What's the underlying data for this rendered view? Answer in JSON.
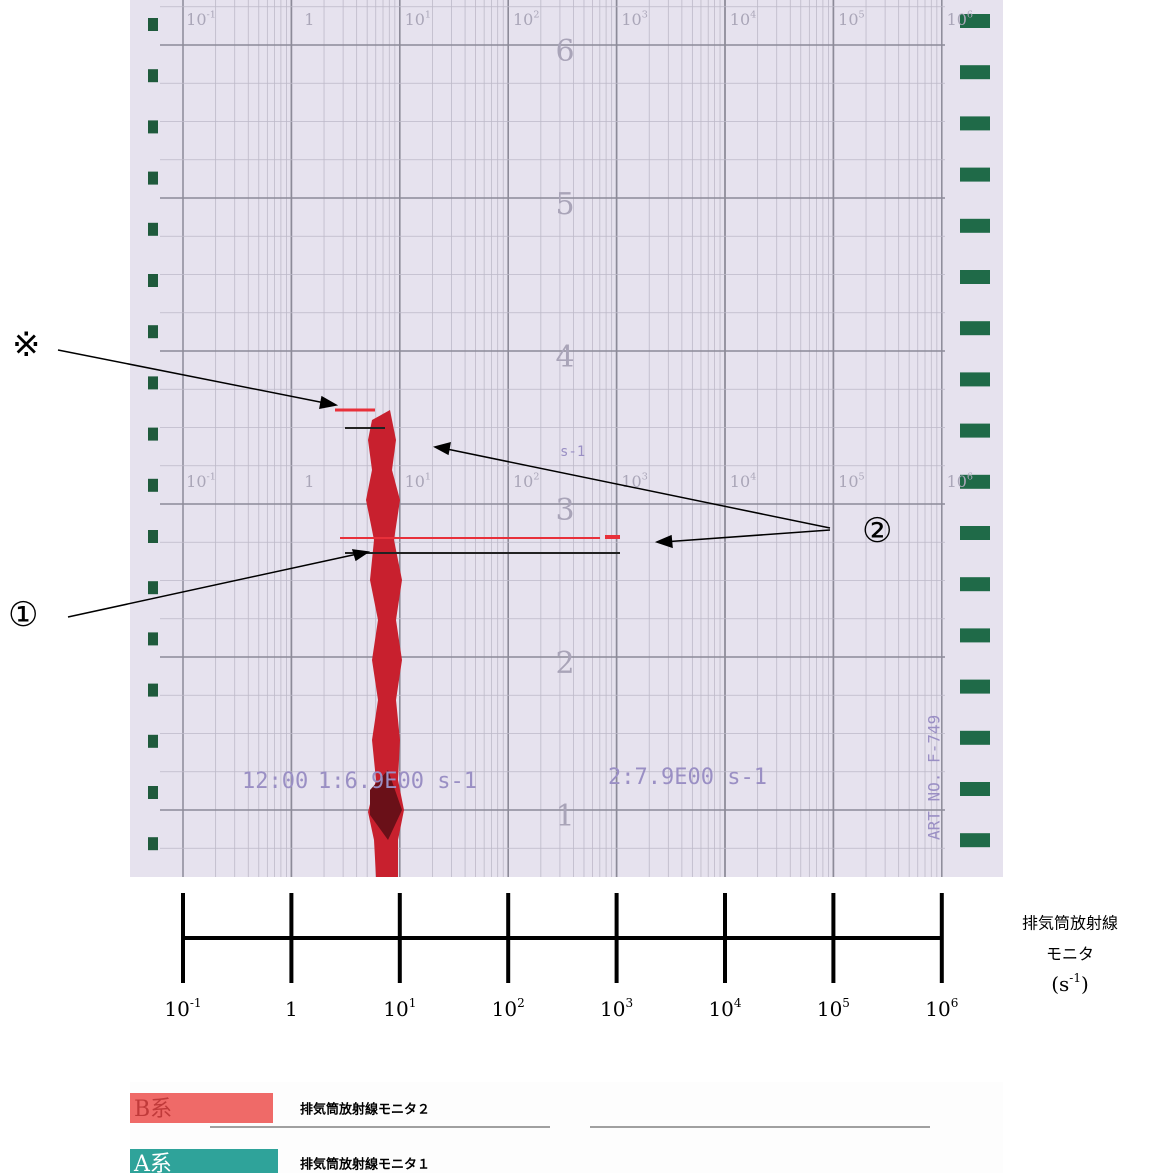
{
  "recorder": {
    "hour_marks": [
      "6",
      "5",
      "4",
      "3",
      "2",
      "1"
    ],
    "print_time": "12:00",
    "print_1": "1:6.9E00 s-1",
    "print_2": "2:7.9E00 s-1",
    "chart_no": "ART NO. F-749",
    "mid_unit": "s-1"
  },
  "annotations": {
    "note": "※",
    "marker_1": "①",
    "marker_2": "②"
  },
  "axis": {
    "ticks": [
      {
        "base": "10",
        "exp": "-1"
      },
      {
        "base": "1"
      },
      {
        "base": "10",
        "exp": "1"
      },
      {
        "base": "10",
        "exp": "2"
      },
      {
        "base": "10",
        "exp": "3"
      },
      {
        "base": "10",
        "exp": "4"
      },
      {
        "base": "10",
        "exp": "5"
      },
      {
        "base": "10",
        "exp": "6"
      }
    ],
    "label_line1": "排気筒放射線",
    "label_line2": "モニタ",
    "unit": {
      "open": "(s",
      "exp": "-1",
      "close": ")"
    }
  },
  "legend": [
    {
      "system": "B系",
      "name": "排気筒放射線モニタ２"
    },
    {
      "system": "A系",
      "name": "排気筒放射線モニタ１"
    }
  ]
}
